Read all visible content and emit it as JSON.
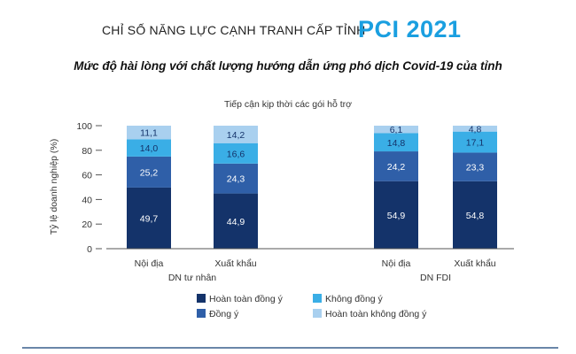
{
  "header": {
    "pre_title": "CHỈ SỐ NĂNG LỰC CẠNH TRANH CẤP TỈNH",
    "brand": "PCI 2021",
    "subtitle": "Mức độ hài lòng với chất lượng hướng dẫn ứng phó dịch Covid-19 của tỉnh"
  },
  "colors": {
    "hoan_toan_dong_y": "#14336a",
    "dong_y": "#2f5fa8",
    "khong_dong_y": "#3aaee6",
    "hoan_toan_khong_dong_y": "#a9d0ef"
  },
  "chart_data": {
    "type": "bar",
    "stacked": true,
    "annotation": "Tiếp cận kịp thời các gói hỗ trợ",
    "ylabel": "Tỷ lệ doanh nghiệp (%)",
    "ylim": [
      0,
      100
    ],
    "yticks": [
      0,
      20,
      40,
      60,
      80,
      100
    ],
    "categories": [
      "Nội địa",
      "Xuất khẩu",
      "Nội địa",
      "Xuất khẩu"
    ],
    "groups": [
      {
        "label": "DN tư nhân",
        "categories": [
          0,
          1
        ]
      },
      {
        "label": "DN FDI",
        "categories": [
          2,
          3
        ]
      }
    ],
    "series": [
      {
        "name": "Hoàn toàn đồng ý",
        "values": [
          49.7,
          44.9,
          54.9,
          54.8
        ],
        "labels": [
          "49,7",
          "44,9",
          "54,9",
          "54,8"
        ]
      },
      {
        "name": "Đồng ý",
        "values": [
          25.2,
          24.3,
          24.2,
          23.3
        ],
        "labels": [
          "25,2",
          "24,3",
          "24,2",
          "23,3"
        ]
      },
      {
        "name": "Không đồng ý",
        "values": [
          14.0,
          16.6,
          14.8,
          17.1
        ],
        "labels": [
          "14,0",
          "16,6",
          "14,8",
          "17,1"
        ]
      },
      {
        "name": "Hoàn toàn không đồng ý",
        "values": [
          11.1,
          14.2,
          6.1,
          4.8
        ],
        "labels": [
          "11,1",
          "14,2",
          "6,1",
          "4,8"
        ]
      }
    ],
    "legend_position": "bottom",
    "grid": false
  }
}
